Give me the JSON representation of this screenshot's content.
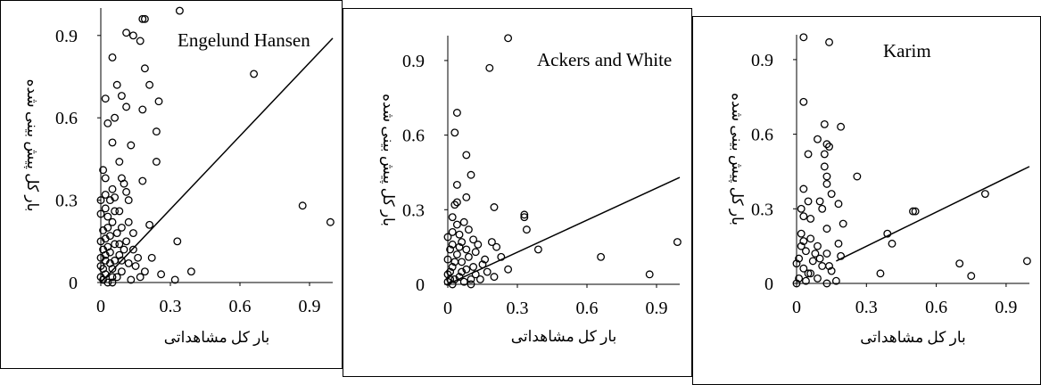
{
  "chart_data": [
    {
      "type": "scatter",
      "annotation": "Engelund Hansen",
      "xlabel": "بار کل مشاهداتی",
      "ylabel": "بار کل پیش بینی شده",
      "xlim": [
        0,
        1
      ],
      "ylim": [
        0,
        1
      ],
      "xticks": [
        "0",
        "0.3",
        "0.6",
        "0.9"
      ],
      "yticks": [
        "0",
        "0.3",
        "0.6",
        "0.9"
      ],
      "fit_line": {
        "x": [
          0,
          1
        ],
        "y": [
          0,
          0.89
        ]
      },
      "points": [
        [
          0.34,
          0.99
        ],
        [
          0.18,
          0.96
        ],
        [
          0.19,
          0.96
        ],
        [
          0.17,
          0.88
        ],
        [
          0.11,
          0.91
        ],
        [
          0.14,
          0.9
        ],
        [
          0.66,
          0.76
        ],
        [
          0.19,
          0.78
        ],
        [
          0.05,
          0.82
        ],
        [
          0.07,
          0.72
        ],
        [
          0.21,
          0.72
        ],
        [
          0.25,
          0.66
        ],
        [
          0.11,
          0.64
        ],
        [
          0.18,
          0.63
        ],
        [
          0.02,
          0.67
        ],
        [
          0.09,
          0.68
        ],
        [
          0.06,
          0.6
        ],
        [
          0.03,
          0.58
        ],
        [
          0.24,
          0.55
        ],
        [
          0.05,
          0.51
        ],
        [
          0.13,
          0.5
        ],
        [
          0.08,
          0.44
        ],
        [
          0.24,
          0.44
        ],
        [
          0.18,
          0.37
        ],
        [
          0.01,
          0.41
        ],
        [
          0.02,
          0.38
        ],
        [
          0.09,
          0.38
        ],
        [
          0.1,
          0.36
        ],
        [
          0.05,
          0.34
        ],
        [
          0.11,
          0.33
        ],
        [
          0.04,
          0.3
        ],
        [
          0.06,
          0.31
        ],
        [
          0.12,
          0.3
        ],
        [
          0.87,
          0.28
        ],
        [
          0.99,
          0.22
        ],
        [
          0.21,
          0.21
        ],
        [
          0.02,
          0.27
        ],
        [
          0.03,
          0.24
        ],
        [
          0.08,
          0.26
        ],
        [
          0.0,
          0.25
        ],
        [
          0.05,
          0.22
        ],
        [
          0.09,
          0.2
        ],
        [
          0.14,
          0.18
        ],
        [
          0.02,
          0.16
        ],
        [
          0.11,
          0.15
        ],
        [
          0.33,
          0.15
        ],
        [
          0.06,
          0.14
        ],
        [
          0.01,
          0.12
        ],
        [
          0.04,
          0.11
        ],
        [
          0.08,
          0.1
        ],
        [
          0.16,
          0.09
        ],
        [
          0.02,
          0.08
        ],
        [
          0.12,
          0.07
        ],
        [
          0.0,
          0.06
        ],
        [
          0.05,
          0.05
        ],
        [
          0.09,
          0.04
        ],
        [
          0.19,
          0.04
        ],
        [
          0.39,
          0.04
        ],
        [
          0.02,
          0.03
        ],
        [
          0.26,
          0.03
        ],
        [
          0.07,
          0.02
        ],
        [
          0.0,
          0.02
        ],
        [
          0.13,
          0.01
        ],
        [
          0.32,
          0.01
        ],
        [
          0.03,
          0.0
        ],
        [
          0.01,
          0.01
        ],
        [
          0.05,
          0.0
        ],
        [
          0.0,
          0.09
        ],
        [
          0.03,
          0.13
        ],
        [
          0.06,
          0.08
        ],
        [
          0.01,
          0.19
        ],
        [
          0.04,
          0.17
        ],
        [
          0.1,
          0.12
        ],
        [
          0.15,
          0.06
        ],
        [
          0.22,
          0.09
        ],
        [
          0.0,
          0.3
        ],
        [
          0.02,
          0.32
        ],
        [
          0.07,
          0.18
        ],
        [
          0.12,
          0.22
        ],
        [
          0.01,
          0.05
        ],
        [
          0.04,
          0.07
        ],
        [
          0.08,
          0.14
        ],
        [
          0.03,
          0.2
        ],
        [
          0.06,
          0.26
        ],
        [
          0.14,
          0.12
        ],
        [
          0.0,
          0.15
        ],
        [
          0.02,
          0.1
        ],
        [
          0.05,
          0.02
        ],
        [
          0.09,
          0.08
        ],
        [
          0.17,
          0.02
        ]
      ]
    },
    {
      "type": "scatter",
      "annotation": "Ackers and White",
      "xlabel": "بار کل مشاهداتی",
      "ylabel": "بار کل پیش بینی شده",
      "xlim": [
        0,
        1
      ],
      "ylim": [
        0,
        1
      ],
      "xticks": [
        "0",
        "0.3",
        "0.6",
        "0.9"
      ],
      "yticks": [
        "0",
        "0.3",
        "0.6",
        "0.9"
      ],
      "fit_line": {
        "x": [
          0,
          1
        ],
        "y": [
          0,
          0.43
        ]
      },
      "points": [
        [
          0.26,
          0.99
        ],
        [
          0.18,
          0.87
        ],
        [
          0.04,
          0.69
        ],
        [
          0.03,
          0.61
        ],
        [
          0.08,
          0.52
        ],
        [
          0.1,
          0.44
        ],
        [
          0.04,
          0.4
        ],
        [
          0.08,
          0.35
        ],
        [
          0.04,
          0.33
        ],
        [
          0.03,
          0.32
        ],
        [
          0.2,
          0.31
        ],
        [
          0.33,
          0.28
        ],
        [
          0.33,
          0.27
        ],
        [
          0.02,
          0.27
        ],
        [
          0.07,
          0.25
        ],
        [
          0.34,
          0.22
        ],
        [
          0.09,
          0.22
        ],
        [
          0.05,
          0.2
        ],
        [
          0.11,
          0.18
        ],
        [
          0.99,
          0.17
        ],
        [
          0.19,
          0.17
        ],
        [
          0.02,
          0.16
        ],
        [
          0.21,
          0.15
        ],
        [
          0.39,
          0.14
        ],
        [
          0.12,
          0.13
        ],
        [
          0.66,
          0.11
        ],
        [
          0.26,
          0.06
        ],
        [
          0.87,
          0.04
        ],
        [
          0.04,
          0.12
        ],
        [
          0.0,
          0.1
        ],
        [
          0.06,
          0.09
        ],
        [
          0.15,
          0.08
        ],
        [
          0.02,
          0.07
        ],
        [
          0.08,
          0.06
        ],
        [
          0.01,
          0.05
        ],
        [
          0.12,
          0.04
        ],
        [
          0.2,
          0.03
        ],
        [
          0.05,
          0.03
        ],
        [
          0.03,
          0.02
        ],
        [
          0.0,
          0.01
        ],
        [
          0.07,
          0.01
        ],
        [
          0.1,
          0.0
        ],
        [
          0.02,
          0.0
        ],
        [
          0.14,
          0.02
        ],
        [
          0.01,
          0.14
        ],
        [
          0.05,
          0.15
        ],
        [
          0.09,
          0.11
        ],
        [
          0.0,
          0.19
        ],
        [
          0.03,
          0.09
        ],
        [
          0.06,
          0.05
        ],
        [
          0.11,
          0.07
        ],
        [
          0.16,
          0.1
        ],
        [
          0.02,
          0.21
        ],
        [
          0.04,
          0.24
        ],
        [
          0.13,
          0.16
        ],
        [
          0.01,
          0.02
        ],
        [
          0.08,
          0.14
        ],
        [
          0.17,
          0.05
        ],
        [
          0.0,
          0.04
        ],
        [
          0.23,
          0.11
        ],
        [
          0.06,
          0.17
        ],
        [
          0.1,
          0.02
        ]
      ]
    },
    {
      "type": "scatter",
      "annotation": "Karim",
      "xlabel": "بار کل مشاهداتی",
      "ylabel": "بار کل پیش بینی شده",
      "xlim": [
        0,
        1
      ],
      "ylim": [
        0,
        1
      ],
      "xticks": [
        "0",
        "0.3",
        "0.6",
        "0.9"
      ],
      "yticks": [
        "0",
        "0.3",
        "0.6",
        "0.9"
      ],
      "fit_line": {
        "x": [
          0.17,
          1
        ],
        "y": [
          0.09,
          0.47
        ]
      },
      "points": [
        [
          0.03,
          0.99
        ],
        [
          0.14,
          0.97
        ],
        [
          0.03,
          0.73
        ],
        [
          0.12,
          0.64
        ],
        [
          0.19,
          0.63
        ],
        [
          0.09,
          0.58
        ],
        [
          0.13,
          0.56
        ],
        [
          0.14,
          0.55
        ],
        [
          0.05,
          0.52
        ],
        [
          0.12,
          0.52
        ],
        [
          0.12,
          0.47
        ],
        [
          0.13,
          0.43
        ],
        [
          0.26,
          0.43
        ],
        [
          0.13,
          0.4
        ],
        [
          0.03,
          0.38
        ],
        [
          0.15,
          0.36
        ],
        [
          0.81,
          0.36
        ],
        [
          0.05,
          0.33
        ],
        [
          0.1,
          0.33
        ],
        [
          0.18,
          0.32
        ],
        [
          0.02,
          0.3
        ],
        [
          0.11,
          0.3
        ],
        [
          0.5,
          0.29
        ],
        [
          0.51,
          0.29
        ],
        [
          0.03,
          0.27
        ],
        [
          0.06,
          0.26
        ],
        [
          0.2,
          0.24
        ],
        [
          0.13,
          0.22
        ],
        [
          0.39,
          0.2
        ],
        [
          0.41,
          0.16
        ],
        [
          0.02,
          0.2
        ],
        [
          0.06,
          0.18
        ],
        [
          0.18,
          0.16
        ],
        [
          0.09,
          0.15
        ],
        [
          0.04,
          0.13
        ],
        [
          0.13,
          0.12
        ],
        [
          0.19,
          0.11
        ],
        [
          0.01,
          0.1
        ],
        [
          0.07,
          0.09
        ],
        [
          0.99,
          0.09
        ],
        [
          0.7,
          0.08
        ],
        [
          0.11,
          0.07
        ],
        [
          0.03,
          0.06
        ],
        [
          0.15,
          0.05
        ],
        [
          0.05,
          0.04
        ],
        [
          0.36,
          0.04
        ],
        [
          0.75,
          0.03
        ],
        [
          0.09,
          0.02
        ],
        [
          0.01,
          0.02
        ],
        [
          0.17,
          0.01
        ],
        [
          0.0,
          0.0
        ],
        [
          0.04,
          0.01
        ],
        [
          0.13,
          0.0
        ],
        [
          0.02,
          0.15
        ],
        [
          0.08,
          0.12
        ],
        [
          0.0,
          0.08
        ],
        [
          0.06,
          0.04
        ],
        [
          0.1,
          0.1
        ],
        [
          0.03,
          0.17
        ],
        [
          0.14,
          0.07
        ]
      ]
    }
  ]
}
